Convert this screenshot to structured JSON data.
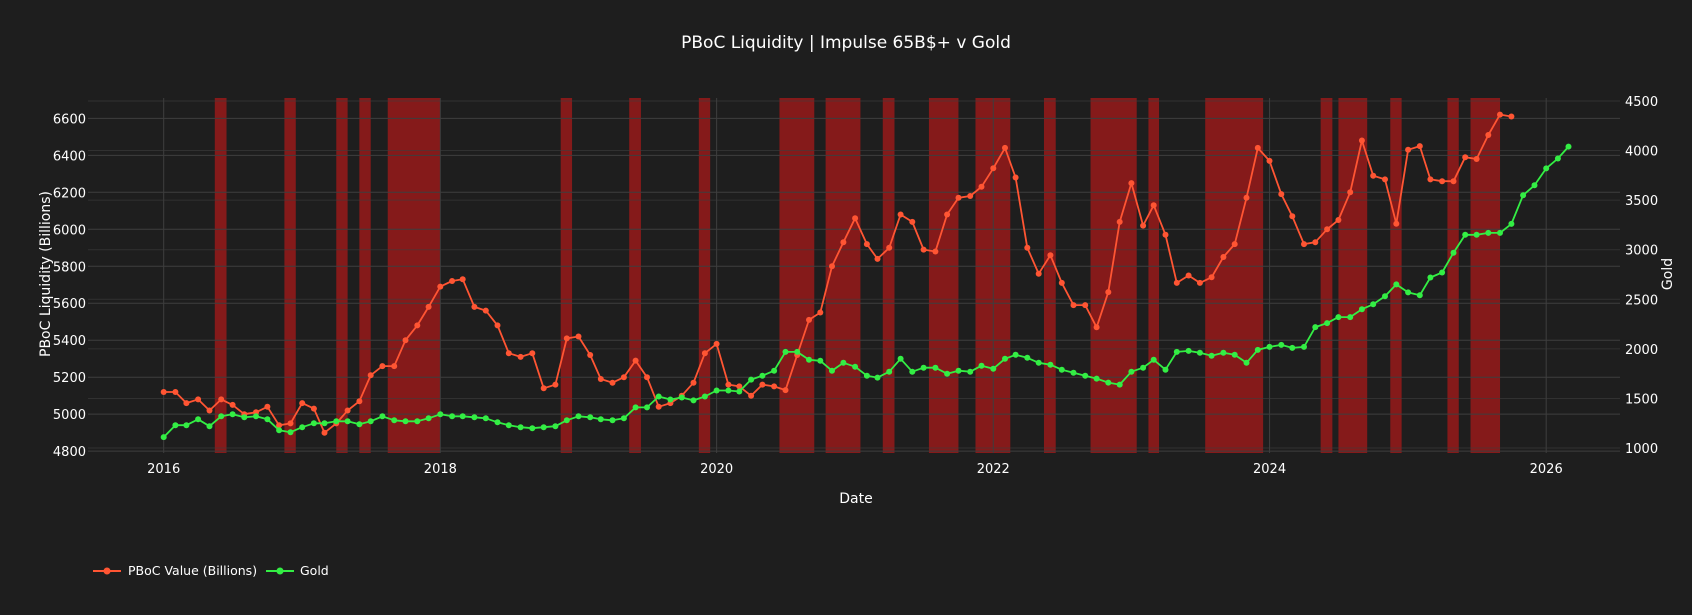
{
  "chart_data": {
    "type": "line",
    "title": "PBoC Liquidity | Impulse 65B$+ v Gold",
    "xlabel": "Date",
    "ylabel_left": "PBoC Liquidity (Billions)",
    "ylabel_right": "Gold",
    "xlim": [
      "2015-06-15",
      "2026-07-15"
    ],
    "ylim_left": [
      4790,
      6710
    ],
    "ylim_right": [
      950,
      4530
    ],
    "x_ticks": [
      "2016",
      "2018",
      "2020",
      "2022",
      "2024",
      "2026"
    ],
    "y_ticks_left": [
      4800,
      5000,
      5200,
      5400,
      5600,
      5800,
      6000,
      6200,
      6400,
      6600
    ],
    "y_ticks_right": [
      1000,
      1500,
      2000,
      2500,
      3000,
      3500,
      4000,
      4500
    ],
    "grid": true,
    "legend_position": "bottom-left",
    "colors": {
      "pboc": "#ff5533",
      "gold": "#33ee44",
      "shade": "#8b1a1a",
      "background": "#1e1e1e",
      "grid": "#3e3e3e",
      "text": "#ffffff"
    },
    "impulse_periods": [
      [
        "2016-05-15",
        "2016-06-15"
      ],
      [
        "2016-11-15",
        "2016-12-15"
      ],
      [
        "2017-04-01",
        "2017-05-01"
      ],
      [
        "2017-06-01",
        "2017-07-01"
      ],
      [
        "2017-08-15",
        "2018-01-01"
      ],
      [
        "2018-11-15",
        "2018-12-15"
      ],
      [
        "2019-05-15",
        "2019-06-15"
      ],
      [
        "2019-11-15",
        "2019-12-15"
      ],
      [
        "2020-06-15",
        "2020-09-15"
      ],
      [
        "2020-10-15",
        "2021-01-15"
      ],
      [
        "2021-03-15",
        "2021-04-15"
      ],
      [
        "2021-07-15",
        "2021-10-01"
      ],
      [
        "2021-11-15",
        "2022-02-15"
      ],
      [
        "2022-05-15",
        "2022-06-15"
      ],
      [
        "2022-09-15",
        "2023-01-15"
      ],
      [
        "2023-02-15",
        "2023-03-15"
      ],
      [
        "2023-07-15",
        "2023-12-15"
      ],
      [
        "2024-05-15",
        "2024-06-15"
      ],
      [
        "2024-07-01",
        "2024-09-15"
      ],
      [
        "2024-11-15",
        "2024-12-15"
      ],
      [
        "2025-04-15",
        "2025-05-15"
      ],
      [
        "2025-06-15",
        "2025-09-01"
      ]
    ],
    "series": [
      {
        "name": "PBoC Value (Billions)",
        "axis": "left",
        "start": "2016-01",
        "values": [
          5120,
          5120,
          5060,
          5080,
          5020,
          5080,
          5050,
          5000,
          5010,
          5040,
          4940,
          4950,
          5060,
          5030,
          4900,
          4950,
          5020,
          5070,
          5210,
          5260,
          5260,
          5400,
          5480,
          5580,
          5690,
          5720,
          5730,
          5580,
          5560,
          5480,
          5330,
          5310,
          5330,
          5140,
          5160,
          5410,
          5420,
          5320,
          5190,
          5170,
          5200,
          5290,
          5200,
          5040,
          5060,
          5100,
          5170,
          5330,
          5380,
          5160,
          5150,
          5100,
          5160,
          5150,
          5130,
          5320,
          5510,
          5550,
          5800,
          5930,
          6060,
          5920,
          5840,
          5900,
          6080,
          6040,
          5890,
          5880,
          6080,
          6170,
          6180,
          6230,
          6330,
          6440,
          6280,
          5900,
          5760,
          5860,
          5710,
          5590,
          5590,
          5470,
          5660,
          6040,
          6250,
          6020,
          6130,
          5970,
          5710,
          5750,
          5710,
          5740,
          5850,
          5920,
          6170,
          6440,
          6370,
          6190,
          6070,
          5920,
          5930,
          6000,
          6050,
          6200,
          6480,
          6290,
          6270,
          6030,
          6430,
          6450,
          6270,
          6260,
          6260,
          6390,
          6380,
          6510,
          6620,
          6610
        ]
      },
      {
        "name": "Gold",
        "axis": "right",
        "start": "2016-01",
        "values": [
          1110,
          1230,
          1230,
          1290,
          1220,
          1320,
          1340,
          1310,
          1320,
          1290,
          1180,
          1160,
          1210,
          1250,
          1250,
          1270,
          1270,
          1240,
          1270,
          1320,
          1280,
          1270,
          1270,
          1300,
          1340,
          1320,
          1320,
          1310,
          1300,
          1260,
          1230,
          1210,
          1200,
          1210,
          1220,
          1280,
          1320,
          1310,
          1290,
          1280,
          1300,
          1410,
          1410,
          1520,
          1490,
          1510,
          1480,
          1520,
          1580,
          1580,
          1570,
          1690,
          1730,
          1780,
          1970,
          1970,
          1890,
          1880,
          1780,
          1860,
          1820,
          1730,
          1710,
          1770,
          1900,
          1770,
          1810,
          1810,
          1750,
          1780,
          1770,
          1830,
          1800,
          1900,
          1940,
          1910,
          1860,
          1840,
          1790,
          1760,
          1730,
          1700,
          1660,
          1640,
          1770,
          1810,
          1890,
          1790,
          1970,
          1980,
          1960,
          1930,
          1960,
          1940,
          1860,
          1990,
          2020,
          2040,
          2010,
          2020,
          2220,
          2260,
          2320,
          2320,
          2400,
          2450,
          2530,
          2650,
          2570,
          2540,
          2720,
          2770,
          2970,
          3150,
          3150,
          3170,
          3170,
          3260,
          3550,
          3650,
          3820,
          3920,
          4040
        ]
      }
    ]
  }
}
